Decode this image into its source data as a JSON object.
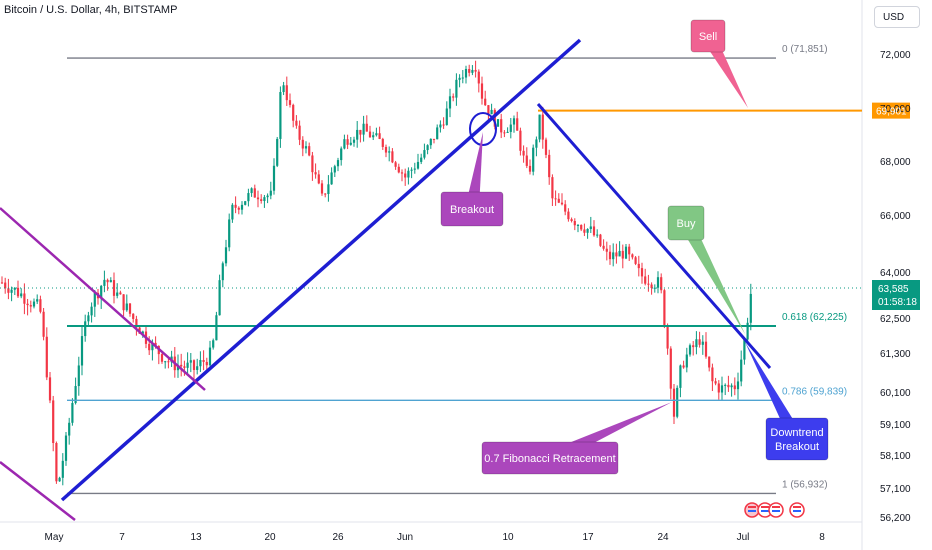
{
  "header": {
    "title": "Bitcoin / U.S. Dollar, 4h, BITSTAMP"
  },
  "currency_button": "USD",
  "chart_data": {
    "type": "candlestick",
    "title": "Bitcoin / U.S. Dollar, 4h, BITSTAMP",
    "y_axis": {
      "ticks": [
        "72,000",
        "70,000",
        "68,000",
        "66,000",
        "64,000",
        "62,500",
        "61,300",
        "60,100",
        "59,100",
        "58,100",
        "57,100",
        "56,200"
      ],
      "range": [
        56000,
        72700
      ]
    },
    "x_axis": {
      "ticks": [
        "May",
        "7",
        "13",
        "20",
        "26",
        "Jun",
        "10",
        "17",
        "24",
        "Jul",
        "8"
      ]
    },
    "price_labels": {
      "current": "63,585",
      "countdown": "01:58:18",
      "highlight": "69,901"
    },
    "fib_levels": [
      {
        "label": "0 (71,851)",
        "value": 71851,
        "color": "#787b86"
      },
      {
        "label": "0.618 (62,225)",
        "value": 62225,
        "color": "#089981"
      },
      {
        "label": "0.786 (59,839)",
        "value": 59839,
        "color": "#4fa3d1"
      },
      {
        "label": "1 (56,932)",
        "value": 56932,
        "color": "#787b86"
      }
    ],
    "horizontal_level": {
      "value": 69901,
      "color": "#ff9800"
    },
    "annotations": [
      {
        "text": "Sell",
        "color": "#f06292"
      },
      {
        "text": "Breakout",
        "color": "#ab47bc"
      },
      {
        "text": "Buy",
        "color": "#81c784"
      },
      {
        "text": "0.7 Fibonacci Retracement",
        "color": "#ab47bc"
      },
      {
        "text": "Downtrend\nBreakout",
        "color": "#3d3dee"
      }
    ],
    "colors": {
      "up": "#089981",
      "down": "#f23645",
      "trendline": "#1e1ed2",
      "channel": "#9c27b0"
    }
  }
}
